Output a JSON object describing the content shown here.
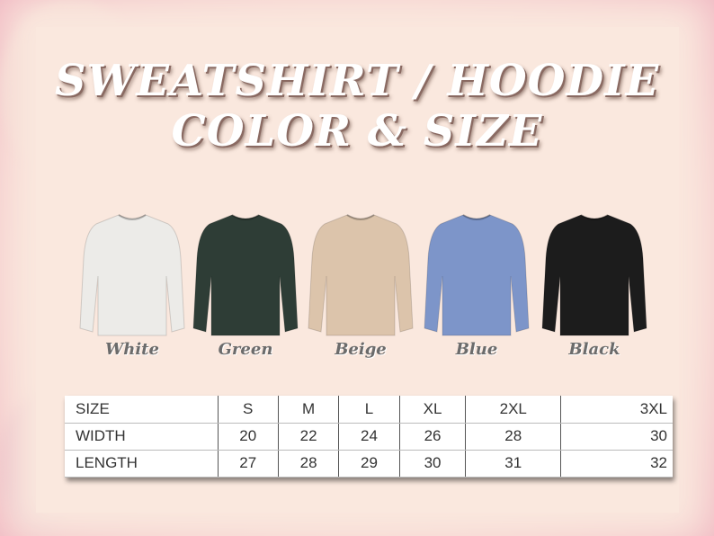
{
  "title": {
    "line1": "SWEATSHIRT / HOODIE",
    "line2": "COLOR & SIZE"
  },
  "colors": [
    {
      "label": "White",
      "hex": "#ecebe8"
    },
    {
      "label": "Green",
      "hex": "#2e3d36"
    },
    {
      "label": "Beige",
      "hex": "#dcc4ab"
    },
    {
      "label": "Blue",
      "hex": "#7d95c9"
    },
    {
      "label": "Black",
      "hex": "#1c1c1c"
    }
  ],
  "size_table": {
    "header": [
      "SIZE",
      "S",
      "M",
      "L",
      "XL",
      "2XL",
      "3XL"
    ],
    "rows": [
      [
        "WIDTH",
        "20",
        "22",
        "24",
        "26",
        "28",
        "30"
      ],
      [
        "LENGTH",
        "27",
        "28",
        "29",
        "30",
        "31",
        "32"
      ]
    ]
  }
}
